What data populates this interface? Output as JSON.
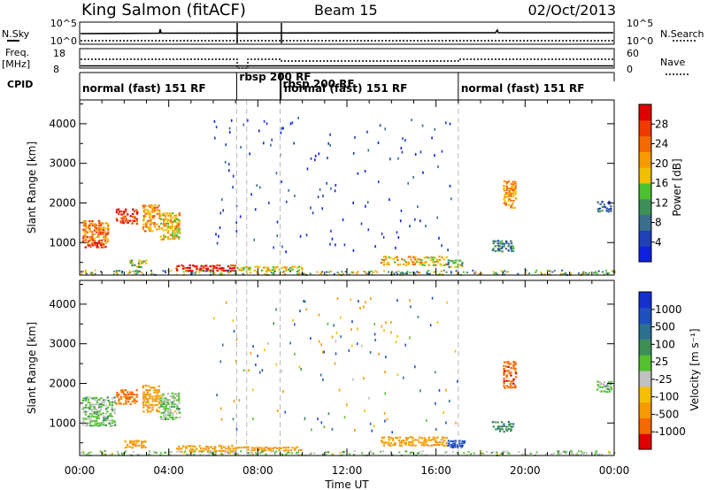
{
  "header": {
    "station": "King Salmon (fitACF)",
    "beam": "Beam 15",
    "date": "02/Oct/2013"
  },
  "strip": {
    "nsky_label": "N.Sky",
    "nsky_ticks": [
      "10^5",
      "10^0"
    ],
    "nsearch_label": "N.Search",
    "nsearch_ticks": [
      "10^5",
      "10^0"
    ],
    "freq_label": "Freq.",
    "freq_unit": "[MHz]",
    "freq_ticks": [
      "18",
      "8"
    ],
    "nave_label": "Nave",
    "nave_ticks": [
      "60",
      "0"
    ],
    "cpid_label": "CPID",
    "modes": [
      {
        "label": "normal (fast) 151 RF",
        "start": 0.0
      },
      {
        "label": "rbsp 200 RF",
        "start": 7.05
      },
      {
        "label": "rbsp 200 RF",
        "start": 9.0
      },
      {
        "label": "normal (fast) 151 RF",
        "start": 9.05
      },
      {
        "label": "normal (fast) 151 RF",
        "start": 17.0
      }
    ]
  },
  "panels": {
    "ylabel": "Slant Range [km]",
    "y_ticks": [
      "1000",
      "2000",
      "3000",
      "4000"
    ],
    "xlabel": "Time UT",
    "x_ticks": [
      "00:00",
      "04:00",
      "08:00",
      "12:00",
      "16:00",
      "20:00",
      "00:00"
    ]
  },
  "colorbars": {
    "power": {
      "label": "Power [dB]",
      "ticks": [
        "4",
        "8",
        "12",
        "16",
        "20",
        "24",
        "28"
      ],
      "colors": [
        "#1020e0",
        "#2040b8",
        "#3a6e8c",
        "#3e8f5a",
        "#4cc030",
        "#f0c000",
        "#f79a00",
        "#f56a00",
        "#f03a00",
        "#e00000"
      ]
    },
    "velocity": {
      "label": "Velocity [m s⁻¹]",
      "ticks": [
        "1000",
        "500",
        "100",
        "25",
        "-25",
        "-100",
        "-500",
        "-1000"
      ],
      "colors": [
        "#1530d0",
        "#2050c0",
        "#2c7090",
        "#3d8f55",
        "#55c030",
        "#c0c0c0",
        "#f5c000",
        "#f59a00",
        "#f56a00",
        "#e00000"
      ]
    }
  },
  "chart_data": [
    {
      "type": "heatmap",
      "title": "Power",
      "xlabel": "Time UT",
      "ylabel": "Slant Range [km]",
      "xlim": [
        0,
        24
      ],
      "ylim": [
        180,
        4600
      ],
      "blobs": [
        {
          "t0": 0.1,
          "t1": 1.3,
          "r0": 1000,
          "r1": 1600,
          "value": 22
        },
        {
          "t0": 0.2,
          "t1": 1.2,
          "r0": 900,
          "r1": 1050,
          "value": 26
        },
        {
          "t0": 1.6,
          "t1": 2.6,
          "r0": 1500,
          "r1": 1900,
          "value": 26
        },
        {
          "t0": 2.8,
          "t1": 3.6,
          "r0": 1300,
          "r1": 2000,
          "value": 20
        },
        {
          "t0": 3.6,
          "t1": 4.5,
          "r0": 1100,
          "r1": 1800,
          "value": 18
        },
        {
          "t0": 2.2,
          "t1": 3.0,
          "r0": 400,
          "r1": 600,
          "value": 14
        },
        {
          "t0": 4.3,
          "t1": 7.0,
          "r0": 300,
          "r1": 480,
          "value": 28
        },
        {
          "t0": 7.0,
          "t1": 10.0,
          "r0": 320,
          "r1": 450,
          "value": 16
        },
        {
          "t0": 13.5,
          "t1": 16.5,
          "r0": 450,
          "r1": 700,
          "value": 18
        },
        {
          "t0": 16.5,
          "t1": 17.2,
          "r0": 400,
          "r1": 600,
          "value": 12
        },
        {
          "t0": 18.5,
          "t1": 19.5,
          "r0": 800,
          "r1": 1100,
          "value": 8
        },
        {
          "t0": 19.0,
          "t1": 19.6,
          "r0": 1900,
          "r1": 2600,
          "value": 20
        },
        {
          "t0": 23.2,
          "t1": 23.9,
          "r0": 1800,
          "r1": 2100,
          "value": 6
        }
      ]
    },
    {
      "type": "heatmap",
      "title": "Velocity",
      "xlabel": "Time UT",
      "ylabel": "Slant Range [km]",
      "xlim": [
        0,
        24
      ],
      "ylim": [
        180,
        4600
      ],
      "blobs": [
        {
          "t0": 0.1,
          "t1": 1.6,
          "r0": 950,
          "r1": 1700,
          "value": 10
        },
        {
          "t0": 1.6,
          "t1": 2.6,
          "r0": 1500,
          "r1": 1900,
          "value": -700
        },
        {
          "t0": 2.8,
          "t1": 3.6,
          "r0": 1300,
          "r1": 2000,
          "value": -300
        },
        {
          "t0": 3.6,
          "t1": 4.5,
          "r0": 1100,
          "r1": 1800,
          "value": 0
        },
        {
          "t0": 2.0,
          "t1": 3.0,
          "r0": 400,
          "r1": 600,
          "value": -150
        },
        {
          "t0": 4.3,
          "t1": 7.0,
          "r0": 300,
          "r1": 480,
          "value": -300
        },
        {
          "t0": 7.0,
          "t1": 10.0,
          "r0": 320,
          "r1": 450,
          "value": -200
        },
        {
          "t0": 13.5,
          "t1": 16.5,
          "r0": 450,
          "r1": 700,
          "value": -300
        },
        {
          "t0": 16.5,
          "t1": 17.3,
          "r0": 400,
          "r1": 600,
          "value": 200
        },
        {
          "t0": 18.5,
          "t1": 19.5,
          "r0": 800,
          "r1": 1100,
          "value": 50
        },
        {
          "t0": 19.0,
          "t1": 19.6,
          "r0": 1900,
          "r1": 2600,
          "value": -800
        },
        {
          "t0": 23.2,
          "t1": 23.9,
          "r0": 1800,
          "r1": 2100,
          "value": 10
        }
      ]
    }
  ]
}
